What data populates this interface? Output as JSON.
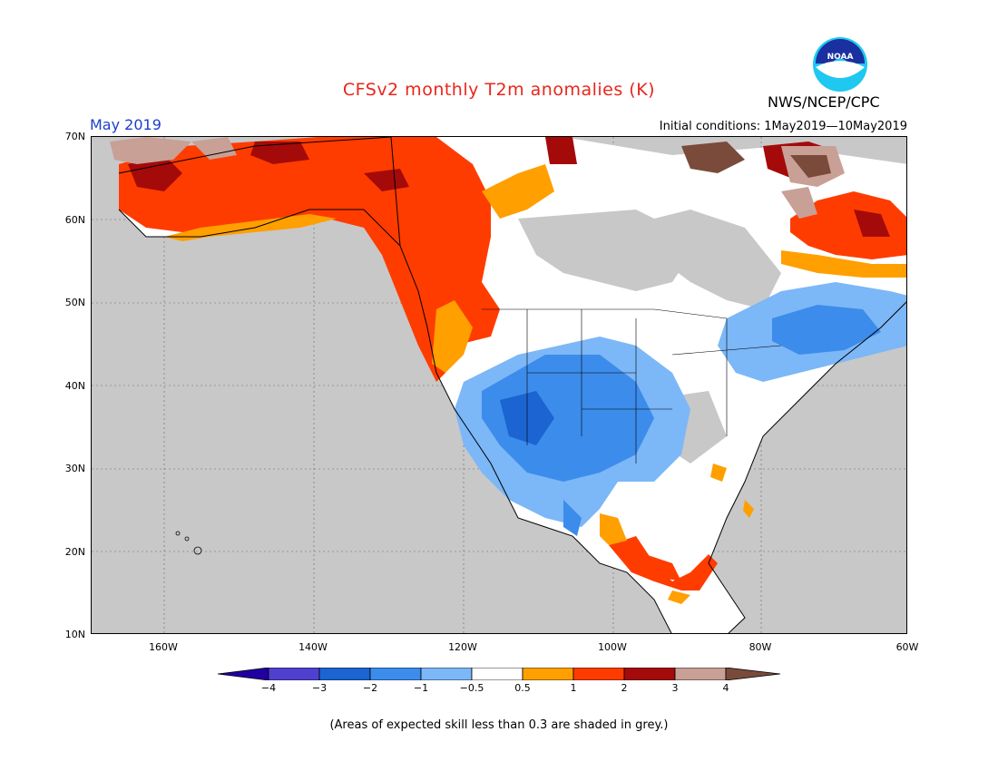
{
  "header": {
    "title": "CFSv2 monthly T2m anomalies (K)",
    "agency": "NWS/NCEP/CPC",
    "logo_text": "NOAA",
    "period": "May 2019",
    "initial_conditions": "Initial conditions: 1May2019—10May2019"
  },
  "map": {
    "lat_labels": [
      "70N",
      "60N",
      "50N",
      "40N",
      "30N",
      "20N",
      "10N"
    ],
    "lon_labels": [
      "160W",
      "140W",
      "120W",
      "100W",
      "80W",
      "60W"
    ],
    "colors": {
      "ocean": "#c8c8c8",
      "no_skill": "#c8c8c8",
      "neutral": "#ffffff",
      "warm_0_5": "#ff9f00",
      "warm_1": "#ff3c00",
      "warm_2": "#a50a0a",
      "warm_3": "#c8a096",
      "cool_0_5": "#7cb7f7",
      "cool_1": "#3c8ceb",
      "cool_2": "#1b64d1"
    }
  },
  "colorbar": {
    "labels": [
      "−4",
      "−3",
      "−2",
      "−1",
      "−0.5",
      "0.5",
      "1",
      "2",
      "3",
      "4"
    ],
    "colors": [
      "#2000a0",
      "#5040d0",
      "#1b64d1",
      "#3c8ceb",
      "#7cb7f7",
      "#ffffff",
      "#ff9f00",
      "#ff3c00",
      "#a50a0a",
      "#c8a096",
      "#7a4a3a"
    ]
  },
  "footnote": "(Areas of expected skill less than 0.3 are shaded in grey.)"
}
